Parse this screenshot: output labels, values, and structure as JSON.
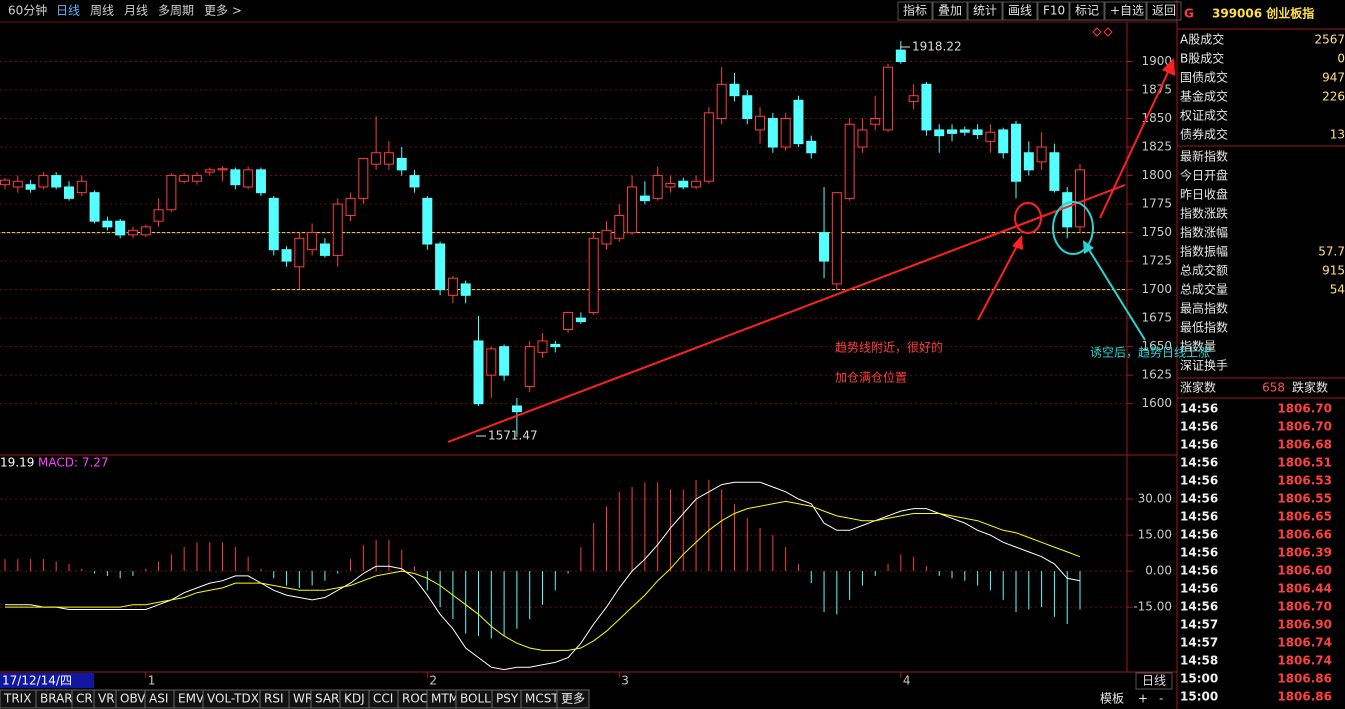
{
  "toolbar": {
    "left": [
      "60分钟",
      "日线",
      "周线",
      "月线",
      "多周期",
      "更多 >"
    ],
    "selected": 1,
    "right": [
      "指标",
      "叠加",
      "统计",
      "画线",
      "F10",
      "标记",
      "+自选",
      "返回"
    ]
  },
  "quote_panel": {
    "code_mark": "G",
    "title": "399006 创业板指",
    "rows_a": [
      {
        "label": "A股成交",
        "value": "2567"
      },
      {
        "label": "B股成交",
        "value": "0"
      },
      {
        "label": "国债成交",
        "value": "947"
      },
      {
        "label": "基金成交",
        "value": "226"
      },
      {
        "label": "权证成交"
      },
      {
        "label": "债券成交",
        "value": "13"
      }
    ],
    "rows_b": [
      {
        "label": "最新指数"
      },
      {
        "label": "今日开盘"
      },
      {
        "label": "昨日收盘"
      },
      {
        "label": "指数涨跌"
      },
      {
        "label": "指数涨幅"
      },
      {
        "label": "指数振幅",
        "value": "57.7"
      },
      {
        "label": "总成交额",
        "value": "915"
      },
      {
        "label": "总成交量",
        "value": "54"
      },
      {
        "label": "最高指数"
      },
      {
        "label": "最低指数"
      },
      {
        "label": "指数量"
      },
      {
        "label": "深证换手"
      }
    ],
    "breadth": {
      "up_label": "涨家数",
      "up_value": "658",
      "down_label": "跌家数"
    },
    "ticks": [
      [
        "14:56",
        "1806.70"
      ],
      [
        "14:56",
        "1806.70"
      ],
      [
        "14:56",
        "1806.68"
      ],
      [
        "14:56",
        "1806.51"
      ],
      [
        "14:56",
        "1806.53"
      ],
      [
        "14:56",
        "1806.55"
      ],
      [
        "14:56",
        "1806.65"
      ],
      [
        "14:56",
        "1806.66"
      ],
      [
        "14:56",
        "1806.39"
      ],
      [
        "14:56",
        "1806.60"
      ],
      [
        "14:56",
        "1806.44"
      ],
      [
        "14:56",
        "1806.70"
      ],
      [
        "14:57",
        "1806.90"
      ],
      [
        "14:57",
        "1806.74"
      ],
      [
        "14:58",
        "1806.74"
      ],
      [
        "15:00",
        "1806.86"
      ],
      [
        "15:00",
        "1806.86"
      ]
    ]
  },
  "status": {
    "date": "17/12/14/四",
    "period": "日线",
    "tabs": [
      "TRIX",
      "BRAR",
      "CR",
      "VR",
      "OBV",
      "ASI",
      "EMV",
      "VOL-TDX",
      "RSI",
      "WR",
      "SAR",
      "KDJ",
      "CCI",
      "ROC",
      "MTM",
      "BOLL",
      "PSY",
      "MCST",
      "更多"
    ],
    "right_tabs": [
      "模板",
      "+",
      "-"
    ]
  },
  "chart_data": [
    {
      "type": "candlestick",
      "up_color": "#ff3c3c",
      "down_color": "#54ffff",
      "grid": true,
      "ylim": [
        1555,
        1932
      ],
      "yticks": [
        1600,
        1625,
        1650,
        1675,
        1700,
        1725,
        1750,
        1775,
        1800,
        1825,
        1850,
        1875,
        1900
      ],
      "high_label": "1918.22",
      "low_label": "1571.47",
      "annotations": [
        {
          "text": "趋势线附近，很好的",
          "color": "#ff3c3c"
        },
        {
          "text": "加仓满仓位置",
          "color": "#ff3c3c"
        },
        {
          "text": "诱空后，趋势日线上涨",
          "color": "#2ad4d4"
        }
      ],
      "categories": [
        null,
        null,
        null,
        null,
        null,
        null,
        null,
        null,
        null,
        null,
        null,
        "1",
        null,
        null,
        null,
        null,
        null,
        null,
        null,
        null,
        null,
        null,
        null,
        null,
        null,
        null,
        null,
        null,
        null,
        null,
        null,
        null,
        null,
        "2",
        null,
        null,
        null,
        null,
        null,
        null,
        null,
        null,
        null,
        null,
        null,
        null,
        null,
        null,
        "3",
        null,
        null,
        null,
        null,
        null,
        null,
        null,
        null,
        null,
        null,
        null,
        null,
        null,
        null,
        null,
        null,
        null,
        null,
        null,
        null,
        null,
        "4",
        null,
        null,
        null,
        null,
        null,
        null,
        null,
        null,
        null,
        null,
        null,
        null,
        null,
        null
      ],
      "open": [
        1792,
        1790,
        1792,
        1790,
        1800,
        1790,
        1785,
        1785,
        1760,
        1760,
        1748,
        1748,
        1760,
        1770,
        1795,
        1795,
        1803,
        1805,
        1805,
        1790,
        1805,
        1780,
        1735,
        1720,
        1735,
        1740,
        1730,
        1765,
        1780,
        1810,
        1810,
        1815,
        1800,
        1780,
        1740,
        1695,
        1705,
        1655,
        1625,
        1650,
        1598,
        1615,
        1645,
        1652,
        1665,
        1675,
        1680,
        1740,
        1745,
        1750,
        1782,
        1780,
        1790,
        1795,
        1790,
        1795,
        1850,
        1880,
        1870,
        1840,
        1850,
        1825,
        1866,
        1830,
        1750,
        1705,
        1780,
        1825,
        1845,
        1840,
        1910,
        1865,
        1880,
        1840,
        1840,
        1840,
        1840,
        1830,
        1840,
        1845,
        1820,
        1812,
        1820,
        1785,
        1755
      ],
      "high": [
        1798,
        1800,
        1796,
        1803,
        1803,
        1795,
        1800,
        1787,
        1764,
        1762,
        1755,
        1757,
        1780,
        1802,
        1802,
        1803,
        1807,
        1808,
        1807,
        1808,
        1807,
        1782,
        1738,
        1750,
        1758,
        1745,
        1780,
        1785,
        1815,
        1852,
        1830,
        1825,
        1805,
        1782,
        1742,
        1712,
        1708,
        1677,
        1650,
        1652,
        1605,
        1655,
        1662,
        1655,
        1680,
        1680,
        1750,
        1760,
        1775,
        1800,
        1795,
        1808,
        1800,
        1798,
        1800,
        1860,
        1895,
        1890,
        1875,
        1860,
        1855,
        1855,
        1870,
        1835,
        1790,
        1785,
        1850,
        1850,
        1870,
        1898,
        1918,
        1880,
        1882,
        1845,
        1845,
        1843,
        1845,
        1845,
        1842,
        1848,
        1830,
        1838,
        1828,
        1790,
        1810
      ],
      "low": [
        1788,
        1785,
        1785,
        1788,
        1788,
        1778,
        1782,
        1758,
        1752,
        1745,
        1745,
        1746,
        1755,
        1768,
        1793,
        1792,
        1800,
        1795,
        1788,
        1788,
        1782,
        1730,
        1720,
        1700,
        1730,
        1728,
        1720,
        1760,
        1775,
        1805,
        1805,
        1800,
        1785,
        1735,
        1695,
        1688,
        1688,
        1598,
        1605,
        1620,
        1571,
        1610,
        1640,
        1645,
        1662,
        1670,
        1678,
        1735,
        1742,
        1748,
        1775,
        1778,
        1785,
        1788,
        1788,
        1793,
        1845,
        1865,
        1845,
        1828,
        1820,
        1822,
        1825,
        1815,
        1710,
        1700,
        1778,
        1820,
        1840,
        1838,
        1898,
        1858,
        1835,
        1820,
        1830,
        1835,
        1832,
        1820,
        1815,
        1780,
        1800,
        1805,
        1785,
        1745,
        1750
      ],
      "close": [
        1796,
        1795,
        1788,
        1800,
        1790,
        1780,
        1795,
        1760,
        1755,
        1748,
        1752,
        1755,
        1770,
        1800,
        1800,
        1800,
        1805,
        1806,
        1792,
        1805,
        1785,
        1735,
        1725,
        1745,
        1750,
        1730,
        1775,
        1780,
        1815,
        1820,
        1820,
        1805,
        1790,
        1740,
        1700,
        1710,
        1695,
        1600,
        1648,
        1625,
        1593,
        1650,
        1655,
        1650,
        1680,
        1672,
        1745,
        1752,
        1765,
        1790,
        1778,
        1800,
        1793,
        1790,
        1795,
        1855,
        1880,
        1870,
        1850,
        1852,
        1825,
        1850,
        1828,
        1820,
        1725,
        1785,
        1845,
        1840,
        1850,
        1895,
        1900,
        1870,
        1840,
        1835,
        1837,
        1838,
        1836,
        1838,
        1820,
        1795,
        1805,
        1825,
        1787,
        1755,
        1805
      ]
    },
    {
      "type": "macd",
      "ylim": [
        -42,
        47.5
      ],
      "grid": true,
      "yticks": [
        {
          "value": 30,
          "label": "30.00"
        },
        {
          "value": 15,
          "label": "15.00"
        },
        {
          "value": 0,
          "label": "0.00"
        },
        {
          "value": -15,
          "label": "-15.00"
        }
      ],
      "title_labels": [
        {
          "text": "19.19",
          "color": "#ffffff"
        },
        {
          "text": "MACD: 7.27",
          "color": "#ff40ff"
        }
      ],
      "histogram": {
        "up_color": "#ff3c3c",
        "down_color": "#54ffff",
        "values": [
          5,
          5,
          5,
          5,
          4,
          3,
          1,
          -1,
          -2,
          -3,
          -2,
          1,
          4,
          7,
          10,
          12,
          12,
          12,
          10,
          6,
          1,
          -3,
          -6,
          -7,
          -6,
          -4,
          -1,
          5,
          11,
          13,
          13,
          9,
          2,
          -8,
          -15,
          -20,
          -26,
          -27,
          -28,
          -27,
          -24,
          -20,
          -14,
          -8,
          -1,
          10,
          20,
          27,
          33,
          35,
          37,
          37,
          34,
          34,
          38,
          38,
          34,
          28,
          22,
          18,
          15,
          10,
          3,
          -5,
          -17,
          -18,
          -12,
          -6,
          -2,
          3,
          7,
          6,
          2,
          -2,
          -3,
          -4,
          -6,
          -8,
          -12,
          -17,
          -16,
          -15,
          -19,
          -22,
          -16
        ]
      },
      "series": [
        {
          "color": "#ffffff",
          "values": [
            -14,
            -14,
            -14,
            -15,
            -15,
            -16,
            -16,
            -16,
            -16,
            -16,
            -16,
            -16,
            -14,
            -12,
            -9,
            -7,
            -5,
            -4,
            -2,
            -2,
            -5,
            -8,
            -10,
            -11,
            -12,
            -11,
            -8,
            -5,
            -1,
            2,
            2,
            1,
            -3,
            -10,
            -18,
            -24,
            -32,
            -36,
            -40,
            -41,
            -40,
            -40,
            -39,
            -38,
            -36,
            -30,
            -22,
            -15,
            -7,
            0,
            5,
            11,
            18,
            24,
            30,
            33,
            36,
            37,
            37,
            37,
            35,
            33,
            30,
            28,
            20,
            17,
            17,
            19,
            21,
            23,
            25,
            26,
            26,
            24,
            22,
            20,
            17,
            15,
            12,
            10,
            8,
            6,
            3,
            -3,
            -4
          ]
        },
        {
          "color": "#ffff00",
          "values": [
            -15,
            -15,
            -15,
            -15,
            -15,
            -15,
            -15,
            -15,
            -15,
            -15,
            -14,
            -14,
            -13,
            -12,
            -11,
            -9,
            -8,
            -7,
            -5,
            -5,
            -5,
            -6,
            -7,
            -8,
            -8,
            -8,
            -7,
            -6,
            -4,
            -2,
            -1,
            0,
            -1,
            -3,
            -6,
            -10,
            -14,
            -18,
            -23,
            -27,
            -30,
            -32,
            -33,
            -33,
            -33,
            -32,
            -29,
            -25,
            -20,
            -15,
            -10,
            -4,
            1,
            7,
            12,
            17,
            21,
            24,
            26,
            27,
            28,
            29,
            28,
            27,
            25,
            23,
            22,
            21,
            21,
            22,
            23,
            24,
            24,
            24,
            23,
            22,
            21,
            19,
            17,
            16,
            14,
            12,
            10,
            8,
            6
          ]
        }
      ]
    }
  ]
}
